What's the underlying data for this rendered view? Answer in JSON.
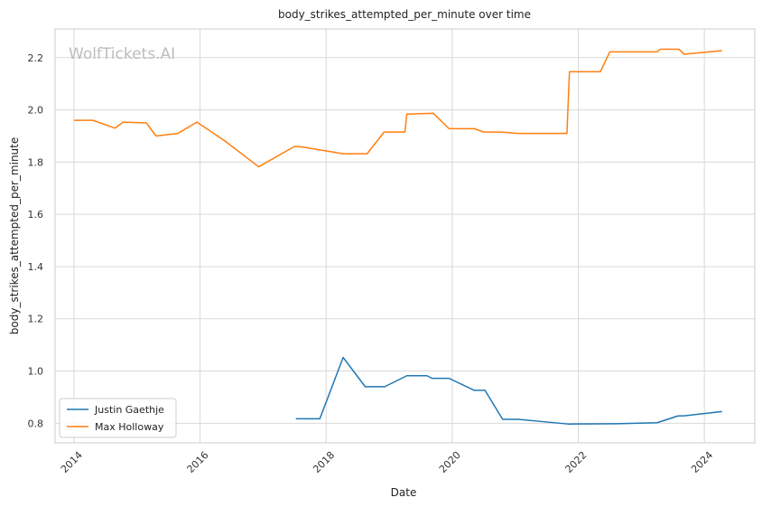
{
  "watermark": "WolfTickets.AI",
  "chart_data": {
    "type": "line",
    "title": "body_strikes_attempted_per_minute over time",
    "xlabel": "Date",
    "ylabel": "body_strikes_attempted_per_minute",
    "xlim": [
      2013.7,
      2024.8
    ],
    "ylim": [
      0.725,
      2.31
    ],
    "x_ticks": [
      2014,
      2016,
      2018,
      2020,
      2022,
      2024
    ],
    "x_tick_labels": [
      "2014",
      "2016",
      "2018",
      "2020",
      "2022",
      "2024"
    ],
    "y_ticks": [
      0.8,
      1.0,
      1.2,
      1.4,
      1.6,
      1.8,
      2.0,
      2.2
    ],
    "y_tick_labels": [
      "0.8",
      "1.0",
      "1.2",
      "1.4",
      "1.6",
      "1.8",
      "2.0",
      "2.2"
    ],
    "grid": true,
    "legend_position": "bottom-left",
    "series": [
      {
        "name": "Justin Gaethje",
        "color": "#1f77b4",
        "x": [
          2017.52,
          2017.9,
          2018.27,
          2018.62,
          2018.93,
          2019.28,
          2019.6,
          2019.68,
          2019.95,
          2020.35,
          2020.52,
          2020.8,
          2021.05,
          2021.4,
          2021.84,
          2022.6,
          2023.25,
          2023.58,
          2023.7,
          2024.28
        ],
        "y": [
          0.817,
          0.817,
          1.052,
          0.94,
          0.94,
          0.982,
          0.982,
          0.972,
          0.972,
          0.926,
          0.926,
          0.815,
          0.815,
          0.807,
          0.797,
          0.798,
          0.802,
          0.828,
          0.829,
          0.845
        ]
      },
      {
        "name": "Max Holloway",
        "color": "#ff7f0e",
        "x": [
          2014.0,
          2014.3,
          2014.65,
          2014.78,
          2015.15,
          2015.3,
          2015.65,
          2015.95,
          2016.4,
          2016.93,
          2017.5,
          2017.62,
          2018.27,
          2018.65,
          2018.92,
          2019.25,
          2019.28,
          2019.7,
          2019.95,
          2020.35,
          2020.5,
          2020.78,
          2021.05,
          2021.82,
          2021.86,
          2022.35,
          2022.5,
          2023.25,
          2023.3,
          2023.6,
          2023.68,
          2024.28
        ],
        "y": [
          1.96,
          1.96,
          1.93,
          1.953,
          1.95,
          1.9,
          1.91,
          1.953,
          1.88,
          1.782,
          1.86,
          1.858,
          1.832,
          1.832,
          1.915,
          1.915,
          1.984,
          1.987,
          1.928,
          1.928,
          1.915,
          1.915,
          1.91,
          1.91,
          2.146,
          2.146,
          2.222,
          2.222,
          2.232,
          2.232,
          2.213,
          2.227
        ]
      }
    ]
  }
}
